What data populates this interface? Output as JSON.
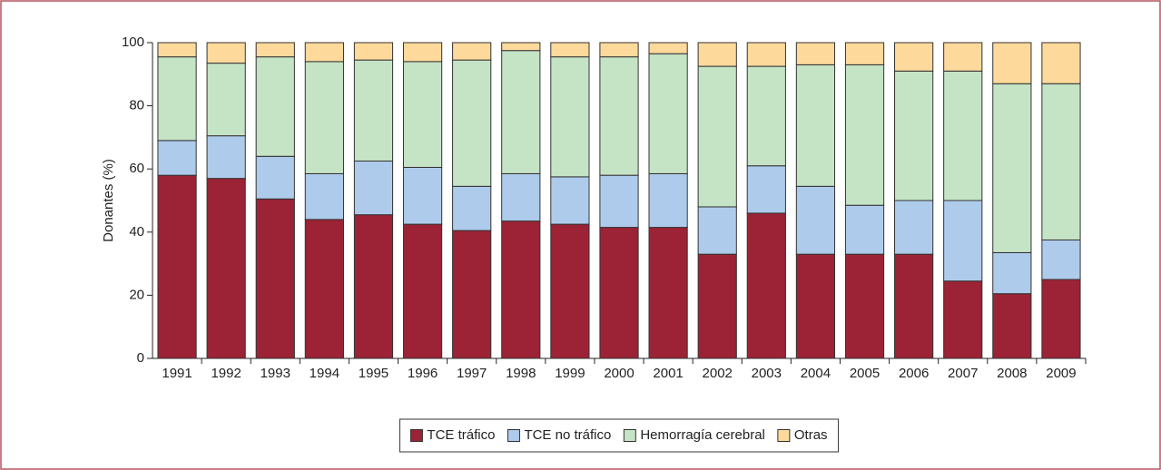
{
  "chart_data": {
    "type": "bar",
    "stacked": true,
    "y_label": "Donantes (%)",
    "categories": [
      "1991",
      "1992",
      "1993",
      "1994",
      "1995",
      "1996",
      "1997",
      "1998",
      "1999",
      "2000",
      "2001",
      "2002",
      "2003",
      "2004",
      "2005",
      "2006",
      "2007",
      "2008",
      "2009"
    ],
    "series": [
      {
        "name": "TCE tráfico",
        "color": "#9b2335",
        "values": [
          58,
          57,
          50.5,
          44,
          45.5,
          42.5,
          40.5,
          43.5,
          42.5,
          41.5,
          41.5,
          33,
          46,
          33,
          33,
          33,
          24.5,
          20.5,
          25
        ]
      },
      {
        "name": "TCE no tráfico",
        "color": "#aecbeb",
        "values": [
          11,
          13.5,
          13.5,
          14.5,
          17,
          18,
          14,
          15,
          15,
          16.5,
          17,
          15,
          15,
          21.5,
          15.5,
          17,
          25.5,
          13,
          12.5
        ]
      },
      {
        "name": "Hemorragía cerebral",
        "color": "#c5e3c5",
        "values": [
          26.5,
          23,
          31.5,
          35.5,
          32,
          33.5,
          40,
          39,
          38,
          37.5,
          38,
          44.5,
          31.5,
          38.5,
          44.5,
          41,
          41,
          53.5,
          49.5
        ]
      },
      {
        "name": "Otras",
        "color": "#fdd99b",
        "values": [
          4.5,
          6.5,
          4.5,
          6,
          5.5,
          6,
          5.5,
          2.5,
          4.5,
          4.5,
          3.5,
          7.5,
          7.5,
          7,
          7,
          9,
          9,
          13,
          13
        ]
      }
    ],
    "ylim": [
      0,
      100
    ],
    "yticks": [
      0,
      20,
      40,
      60,
      80,
      100
    ],
    "grid": false,
    "legend": "bottom"
  }
}
